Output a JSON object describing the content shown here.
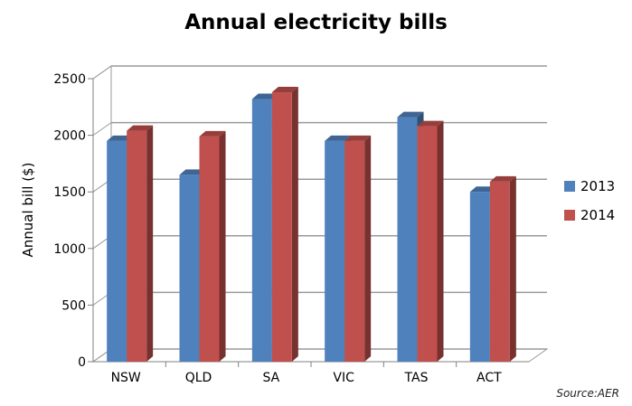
{
  "chart_data": {
    "type": "bar",
    "title": "Annual electricity bills",
    "ylabel": "Annual bill ($)",
    "xlabel": "",
    "categories": [
      "NSW",
      "QLD",
      "SA",
      "VIC",
      "TAS",
      "ACT"
    ],
    "series": [
      {
        "name": "2013",
        "color": "#4F81BD",
        "values": [
          1950,
          1650,
          2320,
          1950,
          2160,
          1500
        ]
      },
      {
        "name": "2014",
        "color": "#C0504D",
        "values": [
          2040,
          1990,
          2380,
          1950,
          2080,
          1590
        ]
      }
    ],
    "ylim": [
      0,
      2500
    ],
    "yticks": [
      0,
      500,
      1000,
      1500,
      2000,
      2500
    ],
    "grid": true,
    "legend": "right",
    "source": "Source:AER"
  }
}
